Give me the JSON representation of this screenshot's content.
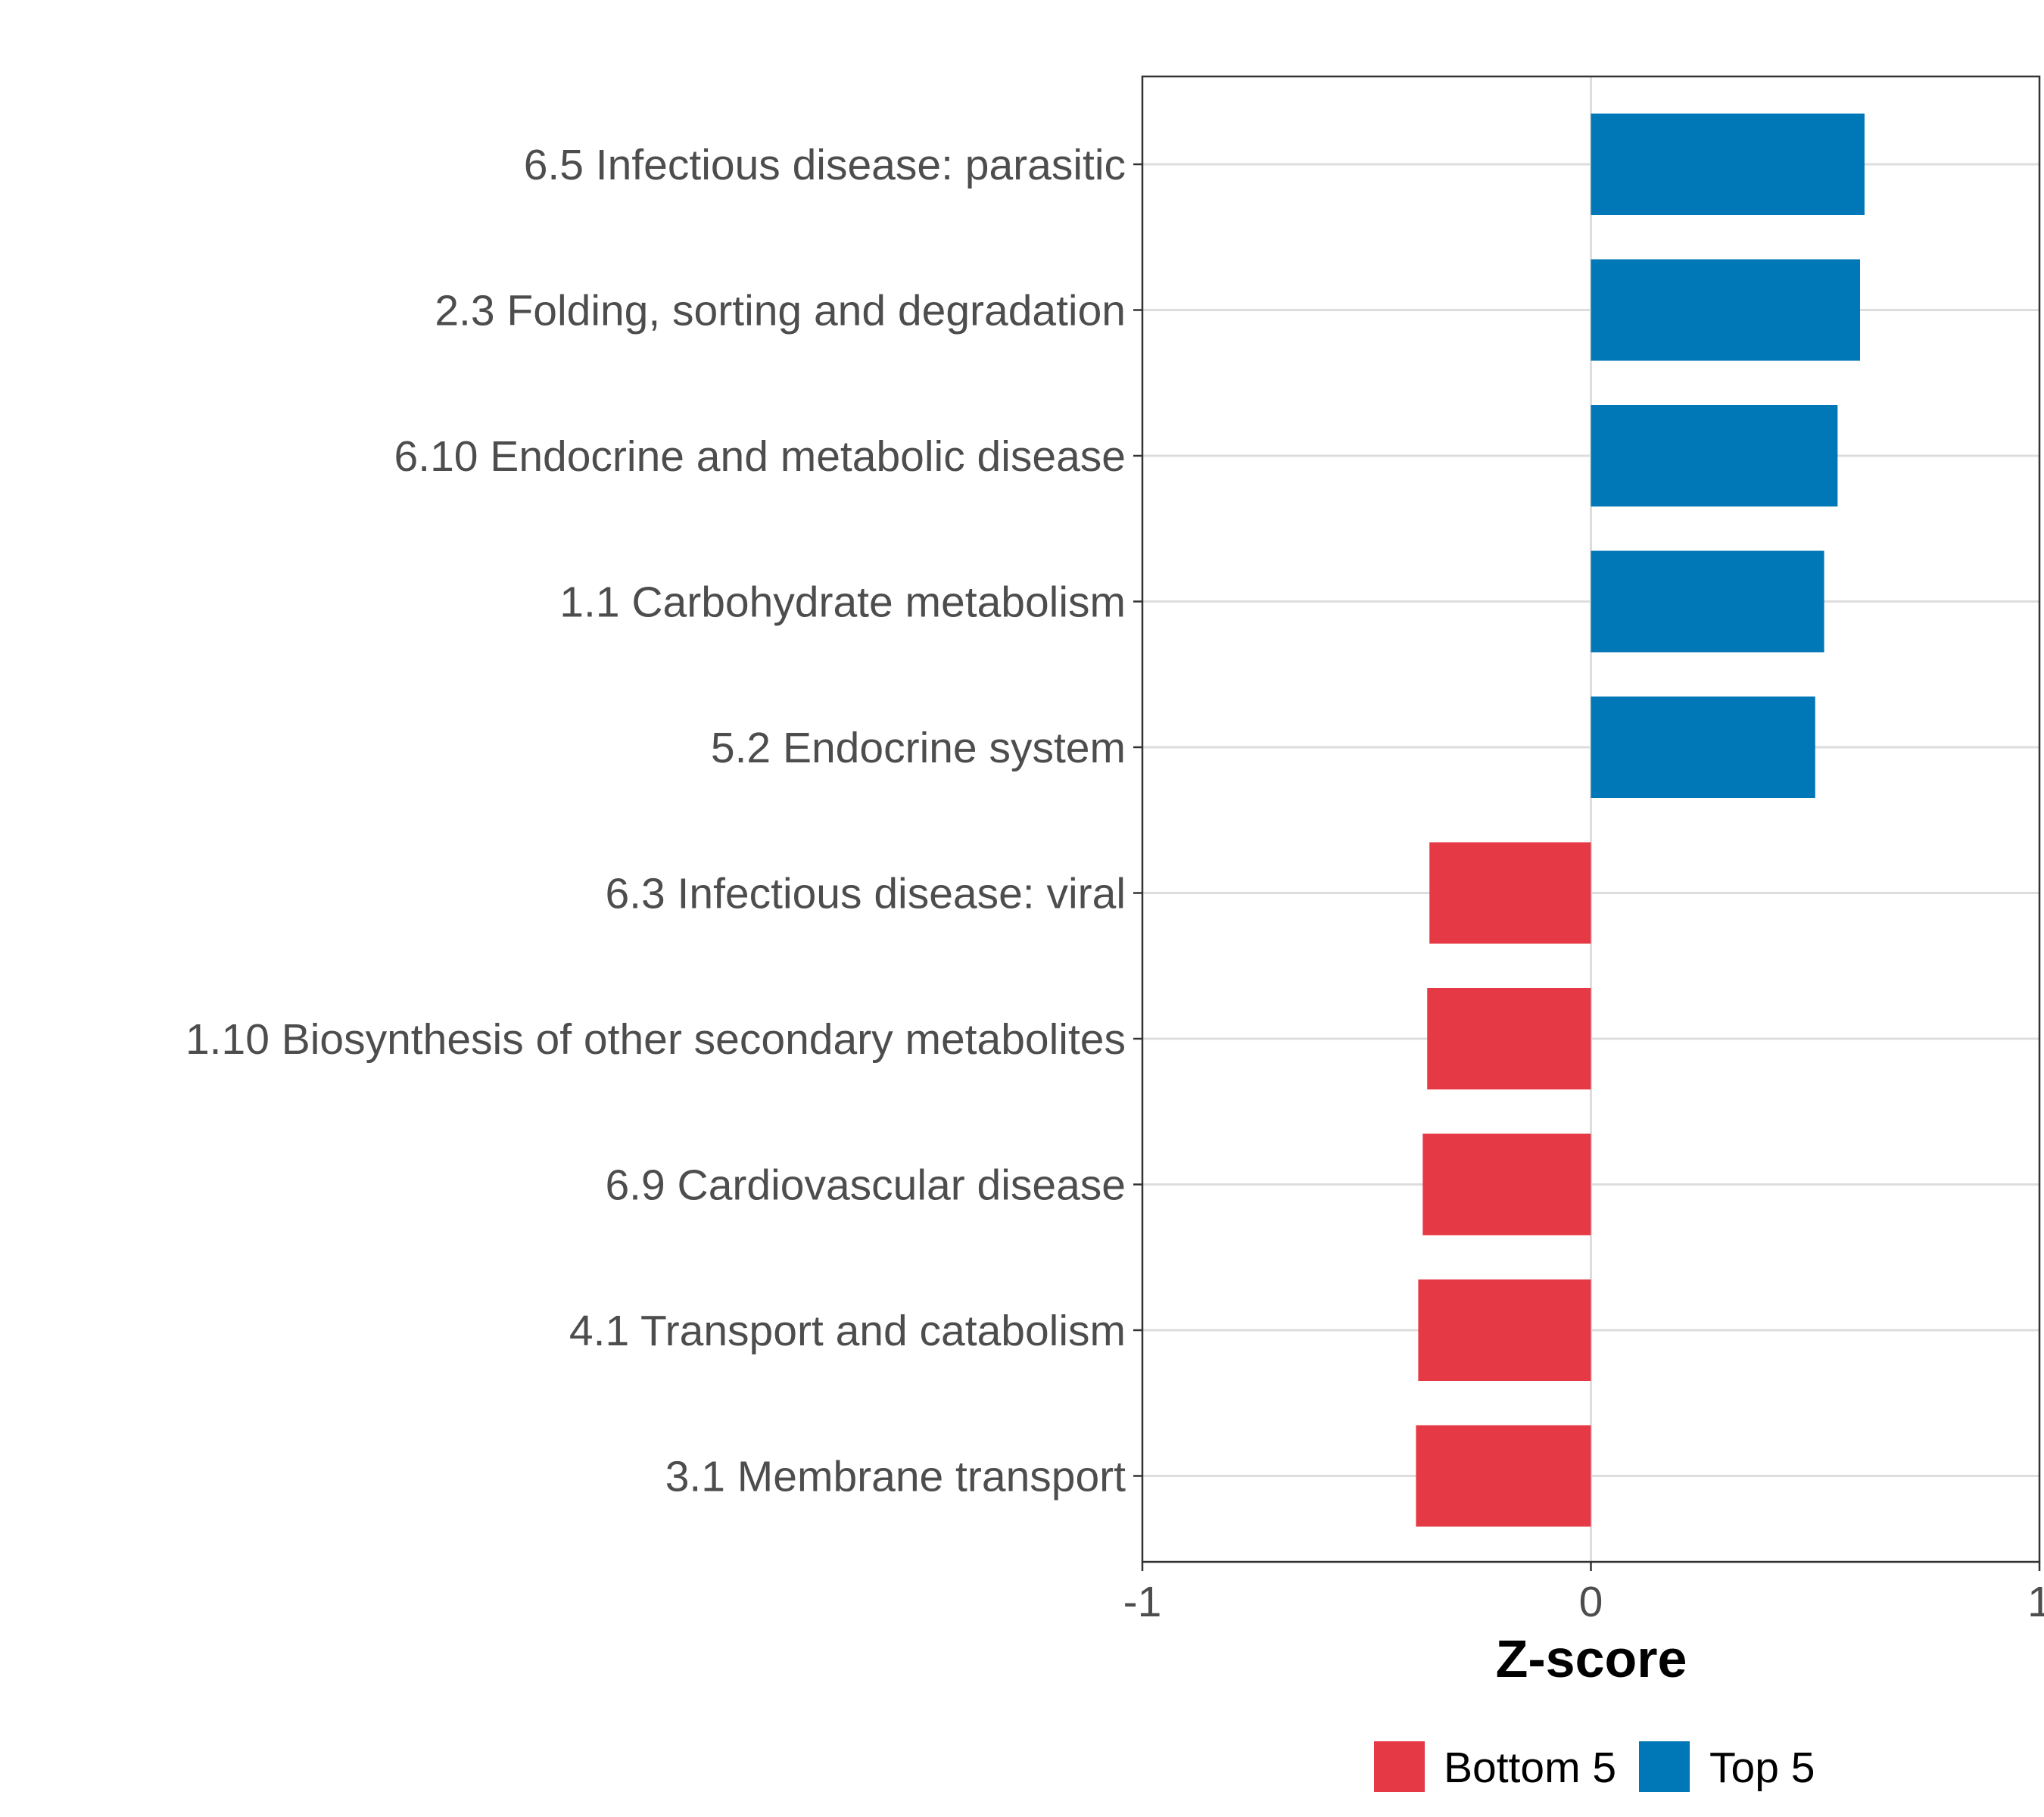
{
  "chart_data": {
    "type": "bar",
    "orientation": "horizontal",
    "title": "",
    "xlabel": "Z-score",
    "ylabel": "",
    "xlim": [
      -1,
      1
    ],
    "xticks": [
      "-1",
      "0",
      "1"
    ],
    "grid": true,
    "legend_position": "bottom",
    "categories": [
      "6.5 Infectious disease: parasitic",
      "2.3 Folding, sorting and degradation",
      "6.10 Endocrine and metabolic disease",
      "1.1 Carbohydrate metabolism",
      "5.2 Endocrine system",
      "6.3 Infectious disease: viral",
      "1.10 Biosynthesis of other secondary metabolites",
      "6.9 Cardiovascular disease",
      "4.1 Transport and catabolism",
      "3.1 Membrane transport"
    ],
    "values": [
      0.61,
      0.6,
      0.55,
      0.52,
      0.5,
      -0.36,
      -0.365,
      -0.375,
      -0.385,
      -0.39
    ],
    "groups": [
      "Top 5",
      "Top 5",
      "Top 5",
      "Top 5",
      "Top 5",
      "Bottom 5",
      "Bottom 5",
      "Bottom 5",
      "Bottom 5",
      "Bottom 5"
    ],
    "legend": [
      {
        "name": "Bottom 5",
        "color": "#e63946"
      },
      {
        "name": "Top 5",
        "color": "#0077b6"
      }
    ]
  }
}
